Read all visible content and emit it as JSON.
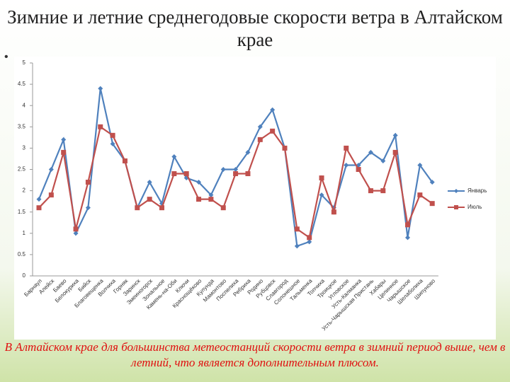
{
  "title": "Зимние и летние среднегодовые скорости ветра в Алтайском крае",
  "note": "В Алтайском крае для большинства метеостанций скорости ветра в зимний период выше, чем в летний, что является дополнительным плюсом.",
  "chart_data": {
    "type": "line",
    "categories": [
      "Барнаул",
      "Алейск",
      "Баево",
      "Белокуриха",
      "Бийск",
      "Благовещенка",
      "Волчиха",
      "Горняк",
      "Заринск",
      "Змеиногорск",
      "Зональное",
      "Камень-на-Оби",
      "Ключи",
      "Краснощёково",
      "Кулунда",
      "Мамонтово",
      "Поспелиха",
      "Ребриха",
      "Родино",
      "Рубцовск",
      "Славгород",
      "Солонешное",
      "Тальменка",
      "Топчиха",
      "Троицкое",
      "Угловское",
      "Усть-Калманка",
      "Усть-Чарышская Пристань",
      "Хабары",
      "Целинное",
      "Чарышское",
      "Шелаболиха",
      "Шипуново"
    ],
    "series": [
      {
        "name": "Январь",
        "color": "#4f81bd",
        "values": [
          1.8,
          2.5,
          3.2,
          1.0,
          1.6,
          4.4,
          3.1,
          2.7,
          1.6,
          2.2,
          1.7,
          2.8,
          2.3,
          2.2,
          1.9,
          2.5,
          2.5,
          2.9,
          3.5,
          3.9,
          3.0,
          0.7,
          0.8,
          1.9,
          1.6,
          2.6,
          2.6,
          2.9,
          2.7,
          3.3,
          0.9,
          2.6,
          2.2
        ]
      },
      {
        "name": "Июль",
        "color": "#c0504d",
        "values": [
          1.6,
          1.9,
          2.9,
          1.1,
          2.2,
          3.5,
          3.3,
          2.7,
          1.6,
          1.8,
          1.6,
          2.4,
          2.4,
          1.8,
          1.8,
          1.6,
          2.4,
          2.4,
          3.2,
          3.4,
          3.0,
          1.1,
          0.9,
          2.3,
          1.5,
          3.0,
          2.5,
          2.0,
          2.0,
          2.9,
          1.2,
          1.9,
          1.7
        ]
      }
    ],
    "ylim": [
      0,
      5
    ],
    "yticks": [
      0,
      0.5,
      1,
      1.5,
      2,
      2.5,
      3,
      3.5,
      4,
      4.5,
      5
    ],
    "legend": "right"
  }
}
